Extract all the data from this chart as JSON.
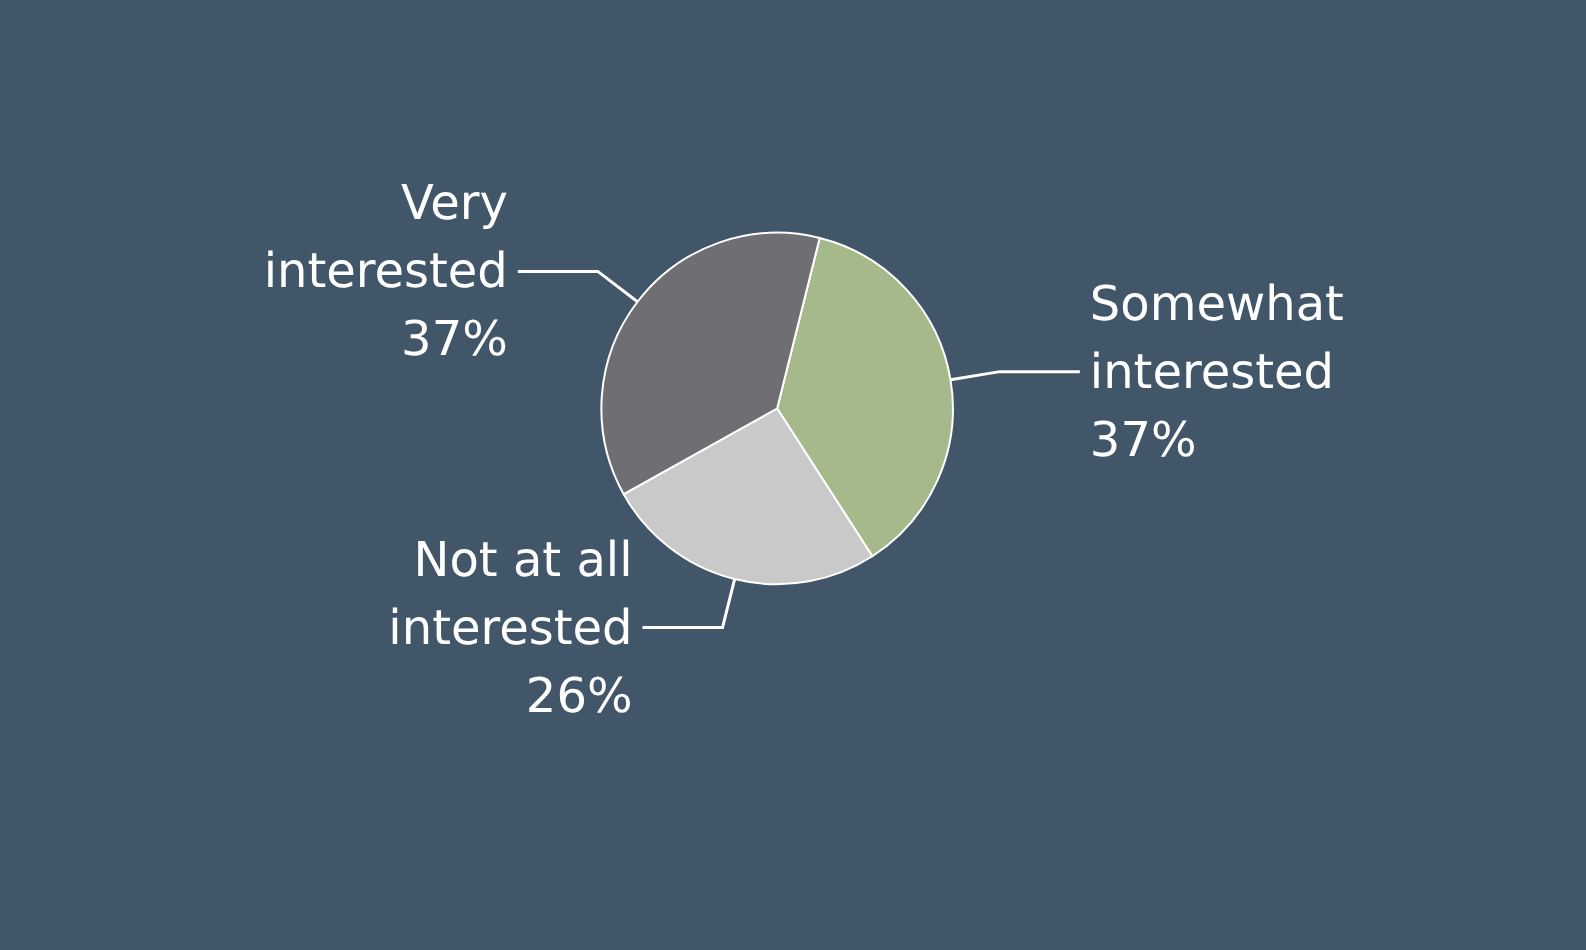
{
  "chart_data": {
    "type": "pie",
    "categories": [
      "Somewhat interested",
      "Not at all interested",
      "Very interested"
    ],
    "values": [
      37,
      26,
      37
    ],
    "colors": [
      "#a6b98a",
      "#c9c9c9",
      "#6f6e72"
    ],
    "value_labels": [
      "37%",
      "26%",
      "37%"
    ],
    "legend": false
  }
}
